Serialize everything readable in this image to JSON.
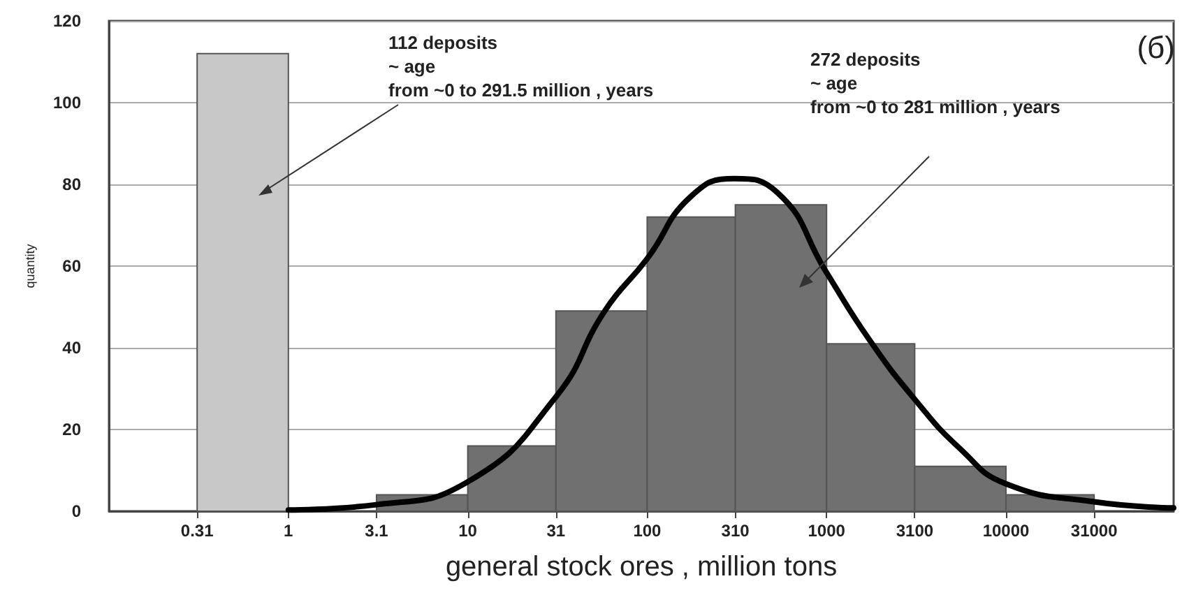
{
  "chart_data": {
    "type": "histogram",
    "xlabel": "general stock ores , million tons",
    "ylabel": "quantity",
    "bins": [
      0.31,
      1,
      3.1,
      10,
      31,
      100,
      310,
      1000,
      3100,
      10000,
      31000
    ],
    "values": [
      112,
      0,
      4,
      16,
      49,
      72,
      75,
      41,
      11,
      4
    ],
    "colors": [
      "#c8c8c8",
      "#707070",
      "#707070",
      "#707070",
      "#707070",
      "#707070",
      "#707070",
      "#707070",
      "#707070",
      "#707070"
    ],
    "series": [
      {
        "type": "line",
        "color": "#000000",
        "x": [
          1,
          3.1,
          10,
          31,
          58,
          100,
          175,
          305,
          532,
          1000,
          1730,
          3100,
          5580,
          10000,
          31000,
          86000
        ],
        "values": [
          0.3,
          1.6,
          7.2,
          28,
          49,
          61.8,
          77,
          81.4,
          78,
          58.4,
          42,
          27.4,
          15.2,
          6.7,
          2.3,
          0.8
        ]
      }
    ],
    "log": "x",
    "xlim": [
      0.1,
      86000
    ],
    "xticks": [
      0.31,
      1,
      3.1,
      10,
      31,
      100,
      310,
      1000,
      3100,
      10000,
      31000
    ],
    "ylim": [
      0,
      120
    ],
    "yticks": [
      0,
      20,
      40,
      60,
      80,
      100,
      120
    ],
    "grid": "y",
    "marker": "none",
    "annotations": [
      "112 deposits\n~ age\nfrom ~0 to 291.5 million , years",
      "272 deposits\n~ age\nfrom ~0 to 281 million , years",
      "(б)"
    ]
  }
}
